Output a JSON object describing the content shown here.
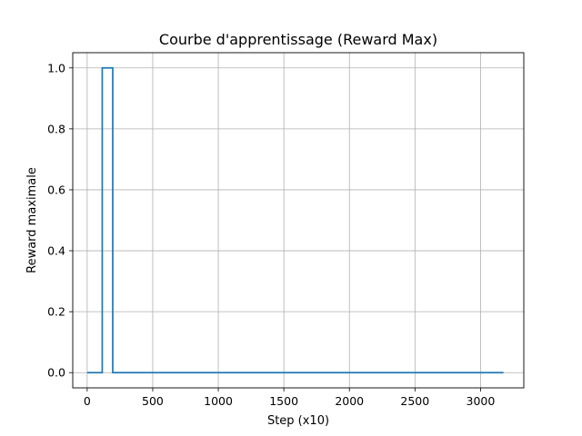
{
  "chart_data": {
    "type": "line",
    "title": "Courbe d'apprentissage (Reward Max)",
    "xlabel": "Step (x10)",
    "ylabel": "Reward maximale",
    "xlim": [
      -110,
      3330
    ],
    "ylim": [
      -0.05,
      1.05
    ],
    "xticks": [
      0,
      500,
      1000,
      1500,
      2000,
      2500,
      3000
    ],
    "xtick_labels": [
      "0",
      "500",
      "1000",
      "1500",
      "2000",
      "2500",
      "3000"
    ],
    "yticks": [
      0.0,
      0.2,
      0.4,
      0.6,
      0.8,
      1.0
    ],
    "ytick_labels": [
      "0.0",
      "0.2",
      "0.4",
      "0.6",
      "0.8",
      "1.0"
    ],
    "grid": true,
    "series": [
      {
        "color": "#1f77b4",
        "x": [
          0,
          115,
          115,
          195,
          195,
          3175
        ],
        "y": [
          0,
          0,
          1,
          1,
          0,
          0
        ]
      }
    ]
  }
}
